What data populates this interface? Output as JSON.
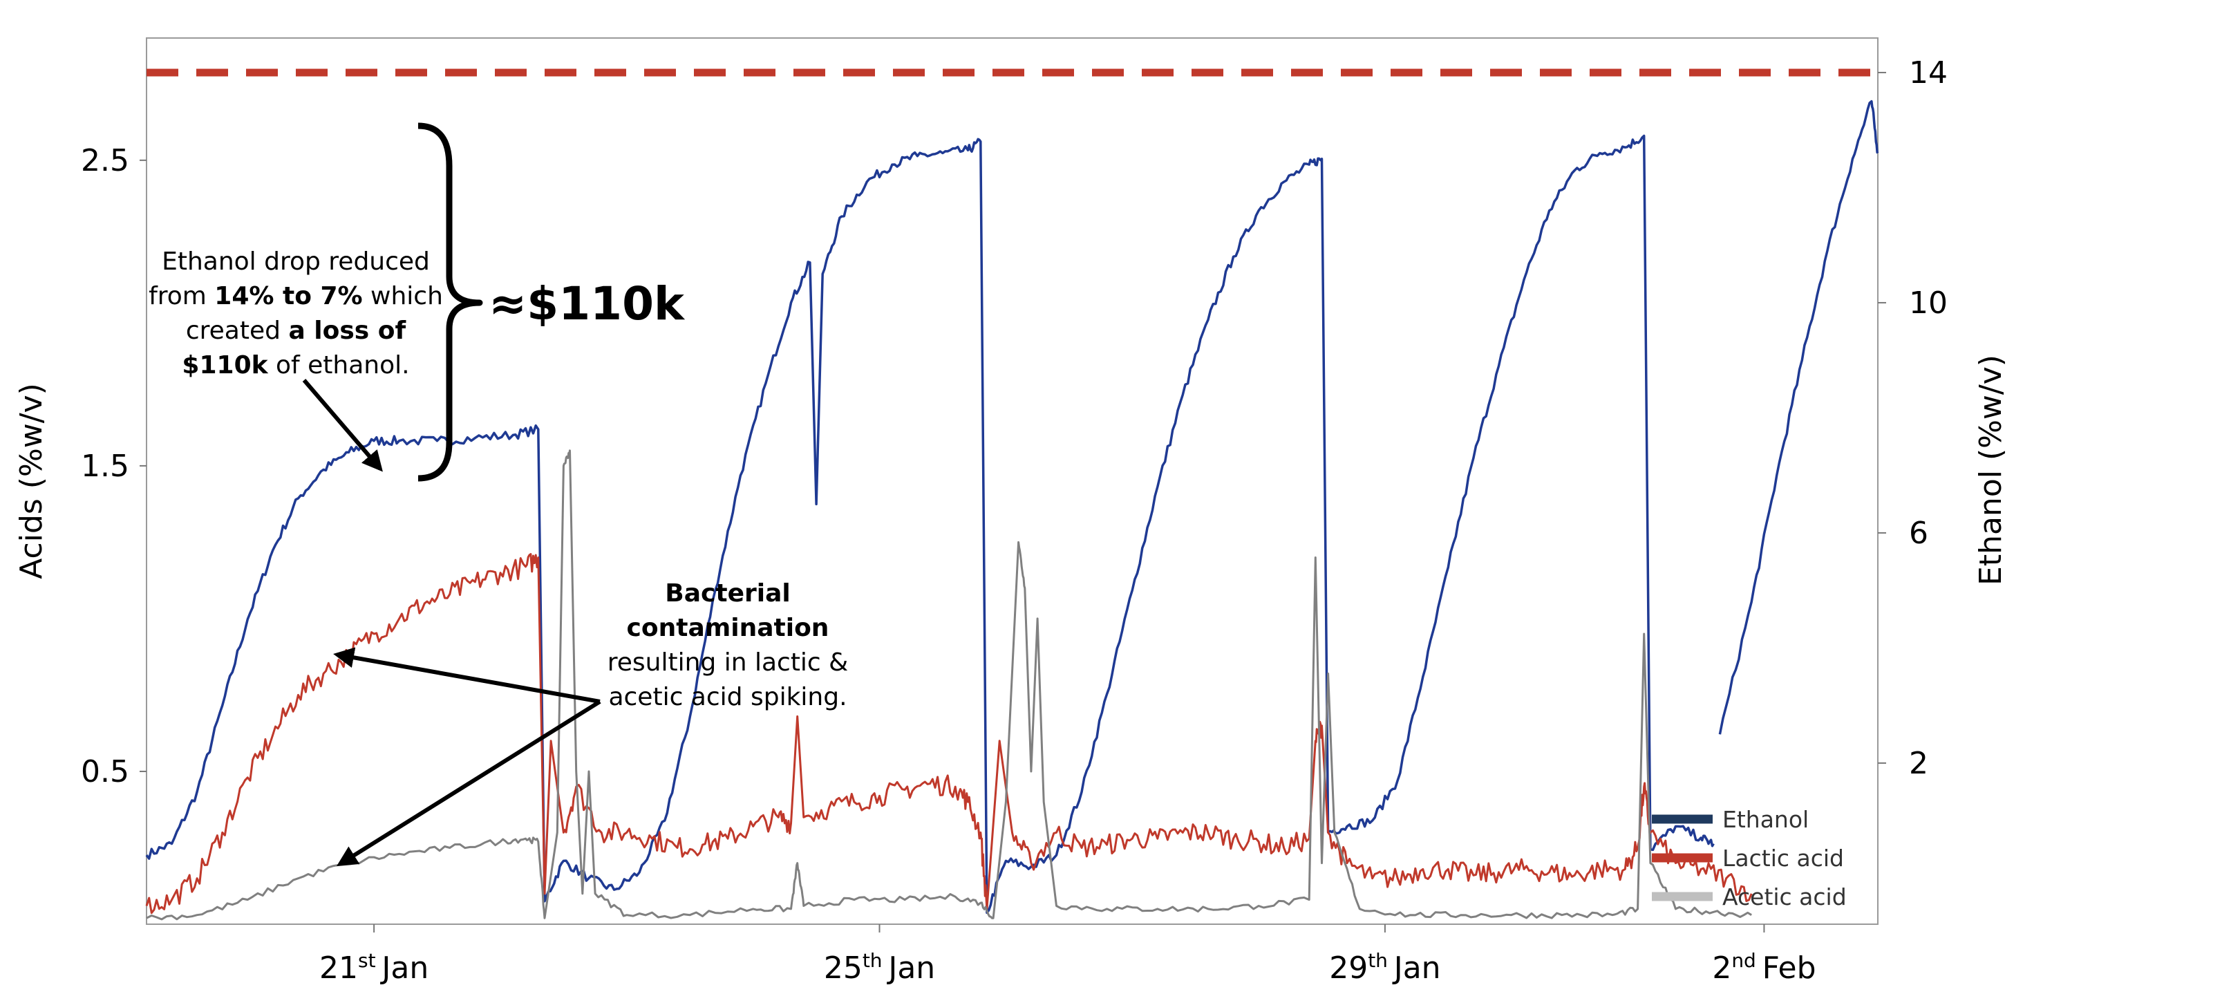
{
  "chart_data": {
    "type": "line",
    "y_left": {
      "label": "Acids (%w/v)",
      "ticks": [
        "0.5",
        "1.5",
        "2.5"
      ],
      "range": [
        0,
        2.9
      ]
    },
    "y_right": {
      "label": "Ethanol (%w/v)",
      "ticks": [
        "2",
        "6",
        "10",
        "14"
      ],
      "range": [
        -0.8,
        14.6
      ]
    },
    "x_ticks": [
      {
        "day": "21",
        "sup": "st",
        "month": "Jan",
        "x": 3
      },
      {
        "day": "25",
        "sup": "th",
        "month": "Jan",
        "x": 7
      },
      {
        "day": "29",
        "sup": "th",
        "month": "Jan",
        "x": 11
      },
      {
        "day": "2",
        "sup": "nd",
        "month": "Feb",
        "x": 14
      }
    ],
    "x_range": [
      1.2,
      14.9
    ],
    "threshold": {
      "value": 14,
      "axis": "right",
      "color": "#c0392b",
      "style": "dashed"
    },
    "series": [
      {
        "name": "Ethanol",
        "axis": "right",
        "color": "#1f3a93",
        "points": [
          [
            1.2,
            0.4
          ],
          [
            1.4,
            0.6
          ],
          [
            1.6,
            1.5
          ],
          [
            1.8,
            3.0
          ],
          [
            2.0,
            4.5
          ],
          [
            2.2,
            5.7
          ],
          [
            2.4,
            6.6
          ],
          [
            2.6,
            7.1
          ],
          [
            2.8,
            7.4
          ],
          [
            3.0,
            7.6
          ],
          [
            3.2,
            7.6
          ],
          [
            3.5,
            7.6
          ],
          [
            3.8,
            7.65
          ],
          [
            4.1,
            7.7
          ],
          [
            4.3,
            7.8
          ],
          [
            4.35,
            -0.4
          ],
          [
            4.5,
            0.3
          ],
          [
            4.7,
            0.0
          ],
          [
            4.9,
            -0.2
          ],
          [
            5.1,
            0.1
          ],
          [
            5.3,
            1.0
          ],
          [
            5.5,
            2.8
          ],
          [
            5.7,
            5.0
          ],
          [
            5.9,
            7.0
          ],
          [
            6.1,
            8.6
          ],
          [
            6.3,
            10.0
          ],
          [
            6.45,
            10.7
          ],
          [
            6.5,
            6.5
          ],
          [
            6.55,
            10.5
          ],
          [
            6.7,
            11.5
          ],
          [
            6.9,
            12.1
          ],
          [
            7.1,
            12.4
          ],
          [
            7.3,
            12.55
          ],
          [
            7.5,
            12.6
          ],
          [
            7.7,
            12.65
          ],
          [
            7.8,
            12.8
          ],
          [
            7.85,
            -0.6
          ],
          [
            8.0,
            0.3
          ],
          [
            8.2,
            0.2
          ],
          [
            8.4,
            0.4
          ],
          [
            8.6,
            1.5
          ],
          [
            8.8,
            3.2
          ],
          [
            9.0,
            5.0
          ],
          [
            9.2,
            6.8
          ],
          [
            9.4,
            8.4
          ],
          [
            9.6,
            9.7
          ],
          [
            9.8,
            10.8
          ],
          [
            10.0,
            11.6
          ],
          [
            10.2,
            12.1
          ],
          [
            10.4,
            12.4
          ],
          [
            10.5,
            12.5
          ],
          [
            10.55,
            0.8
          ],
          [
            10.7,
            0.9
          ],
          [
            10.9,
            1.0
          ],
          [
            11.1,
            1.7
          ],
          [
            11.3,
            3.5
          ],
          [
            11.5,
            5.4
          ],
          [
            11.7,
            7.3
          ],
          [
            11.9,
            8.9
          ],
          [
            12.1,
            10.4
          ],
          [
            12.3,
            11.6
          ],
          [
            12.5,
            12.3
          ],
          [
            12.7,
            12.6
          ],
          [
            12.9,
            12.7
          ],
          [
            13.05,
            12.9
          ],
          [
            13.1,
            0.5
          ],
          [
            13.3,
            0.9
          ],
          [
            13.5,
            0.7
          ],
          [
            13.6,
            0.6
          ]
        ]
      },
      {
        "name": "",
        "axis": "right",
        "color": "#1f3a93",
        "points": [
          [
            13.65,
            2.5
          ],
          [
            13.9,
            4.8
          ],
          [
            14.1,
            7.0
          ],
          [
            14.3,
            9.0
          ],
          [
            14.5,
            10.9
          ],
          [
            14.7,
            12.5
          ],
          [
            14.85,
            13.5
          ],
          [
            14.9,
            12.6
          ]
        ]
      },
      {
        "name": "Lactic acid",
        "axis": "left",
        "color": "#c0392b",
        "points": [
          [
            1.2,
            0.06
          ],
          [
            1.4,
            0.08
          ],
          [
            1.6,
            0.15
          ],
          [
            1.8,
            0.3
          ],
          [
            2.0,
            0.48
          ],
          [
            2.2,
            0.62
          ],
          [
            2.4,
            0.75
          ],
          [
            2.6,
            0.82
          ],
          [
            2.8,
            0.88
          ],
          [
            3.0,
            0.95
          ],
          [
            3.2,
            1.0
          ],
          [
            3.4,
            1.05
          ],
          [
            3.6,
            1.08
          ],
          [
            3.8,
            1.12
          ],
          [
            4.0,
            1.15
          ],
          [
            4.2,
            1.17
          ],
          [
            4.3,
            1.2
          ],
          [
            4.35,
            0.1
          ],
          [
            4.4,
            0.6
          ],
          [
            4.5,
            0.3
          ],
          [
            4.6,
            0.45
          ],
          [
            4.8,
            0.3
          ],
          [
            5.0,
            0.3
          ],
          [
            5.2,
            0.28
          ],
          [
            5.4,
            0.25
          ],
          [
            5.6,
            0.26
          ],
          [
            5.8,
            0.28
          ],
          [
            6.0,
            0.32
          ],
          [
            6.2,
            0.35
          ],
          [
            6.3,
            0.33
          ],
          [
            6.35,
            0.68
          ],
          [
            6.4,
            0.35
          ],
          [
            6.6,
            0.38
          ],
          [
            6.8,
            0.4
          ],
          [
            7.0,
            0.42
          ],
          [
            7.2,
            0.44
          ],
          [
            7.4,
            0.46
          ],
          [
            7.6,
            0.45
          ],
          [
            7.7,
            0.4
          ],
          [
            7.8,
            0.3
          ],
          [
            7.85,
            0.05
          ],
          [
            7.95,
            0.6
          ],
          [
            8.05,
            0.3
          ],
          [
            8.2,
            0.2
          ],
          [
            8.4,
            0.3
          ],
          [
            8.6,
            0.25
          ],
          [
            8.8,
            0.26
          ],
          [
            9.0,
            0.28
          ],
          [
            9.2,
            0.28
          ],
          [
            9.4,
            0.3
          ],
          [
            9.6,
            0.3
          ],
          [
            9.8,
            0.28
          ],
          [
            10.0,
            0.27
          ],
          [
            10.2,
            0.25
          ],
          [
            10.4,
            0.28
          ],
          [
            10.45,
            0.6
          ],
          [
            10.5,
            0.65
          ],
          [
            10.55,
            0.3
          ],
          [
            10.7,
            0.2
          ],
          [
            10.9,
            0.15
          ],
          [
            11.1,
            0.15
          ],
          [
            11.3,
            0.18
          ],
          [
            11.5,
            0.18
          ],
          [
            11.7,
            0.16
          ],
          [
            11.9,
            0.17
          ],
          [
            12.1,
            0.18
          ],
          [
            12.3,
            0.17
          ],
          [
            12.5,
            0.16
          ],
          [
            12.7,
            0.18
          ],
          [
            12.9,
            0.18
          ],
          [
            13.0,
            0.25
          ],
          [
            13.05,
            0.45
          ],
          [
            13.1,
            0.3
          ],
          [
            13.3,
            0.2
          ],
          [
            13.5,
            0.18
          ],
          [
            13.7,
            0.15
          ],
          [
            13.9,
            0.1
          ]
        ]
      },
      {
        "name": "Acetic acid",
        "axis": "left",
        "color": "#808080",
        "points": [
          [
            1.2,
            0.02
          ],
          [
            1.6,
            0.03
          ],
          [
            2.0,
            0.08
          ],
          [
            2.4,
            0.15
          ],
          [
            2.8,
            0.2
          ],
          [
            3.2,
            0.23
          ],
          [
            3.6,
            0.25
          ],
          [
            4.0,
            0.27
          ],
          [
            4.2,
            0.28
          ],
          [
            4.3,
            0.27
          ],
          [
            4.35,
            0.02
          ],
          [
            4.45,
            0.3
          ],
          [
            4.5,
            1.5
          ],
          [
            4.55,
            1.55
          ],
          [
            4.6,
            0.5
          ],
          [
            4.65,
            0.1
          ],
          [
            4.7,
            0.5
          ],
          [
            4.75,
            0.1
          ],
          [
            5.0,
            0.03
          ],
          [
            5.5,
            0.03
          ],
          [
            6.0,
            0.05
          ],
          [
            6.3,
            0.05
          ],
          [
            6.35,
            0.2
          ],
          [
            6.4,
            0.06
          ],
          [
            6.8,
            0.08
          ],
          [
            7.2,
            0.08
          ],
          [
            7.6,
            0.09
          ],
          [
            7.8,
            0.07
          ],
          [
            7.9,
            0.02
          ],
          [
            8.0,
            0.4
          ],
          [
            8.1,
            1.25
          ],
          [
            8.15,
            1.1
          ],
          [
            8.2,
            0.5
          ],
          [
            8.25,
            1.0
          ],
          [
            8.3,
            0.4
          ],
          [
            8.4,
            0.06
          ],
          [
            8.8,
            0.05
          ],
          [
            9.2,
            0.05
          ],
          [
            9.6,
            0.05
          ],
          [
            10.0,
            0.06
          ],
          [
            10.4,
            0.08
          ],
          [
            10.45,
            1.2
          ],
          [
            10.5,
            0.2
          ],
          [
            10.55,
            0.82
          ],
          [
            10.6,
            0.3
          ],
          [
            10.8,
            0.05
          ],
          [
            11.2,
            0.03
          ],
          [
            11.6,
            0.03
          ],
          [
            12.0,
            0.03
          ],
          [
            12.4,
            0.03
          ],
          [
            12.8,
            0.03
          ],
          [
            13.0,
            0.05
          ],
          [
            13.05,
            0.95
          ],
          [
            13.1,
            0.2
          ],
          [
            13.3,
            0.05
          ],
          [
            13.6,
            0.04
          ],
          [
            13.9,
            0.03
          ]
        ]
      }
    ],
    "legend": {
      "position": "bottom-right",
      "entries": [
        {
          "label": "Ethanol",
          "color": "#1f3a5f"
        },
        {
          "label": "Lactic acid",
          "color": "#c0392b"
        },
        {
          "label": "Acetic acid",
          "color": "#bfbfbf"
        }
      ]
    },
    "annotations": {
      "ethanol_drop": {
        "lines": [
          [
            {
              "t": "Ethanol drop  reduced",
              "b": false
            }
          ],
          [
            {
              "t": "from ",
              "b": false
            },
            {
              "t": "14% to 7%",
              "b": true
            },
            {
              "t": " which",
              "b": false
            }
          ],
          [
            {
              "t": "created ",
              "b": false
            },
            {
              "t": "a loss of",
              "b": true
            }
          ],
          [
            {
              "t": "$110k",
              "b": true
            },
            {
              "t": " of ethanol.",
              "b": false
            }
          ]
        ]
      },
      "loss_label": "≈$110k",
      "contamination": {
        "lines": [
          [
            {
              "t": "Bacterial",
              "b": true
            }
          ],
          [
            {
              "t": "contamination",
              "b": true
            }
          ],
          [
            {
              "t": "resulting in lactic &",
              "b": false
            }
          ],
          [
            {
              "t": "acetic acid spiking.",
              "b": false
            }
          ]
        ]
      }
    }
  }
}
